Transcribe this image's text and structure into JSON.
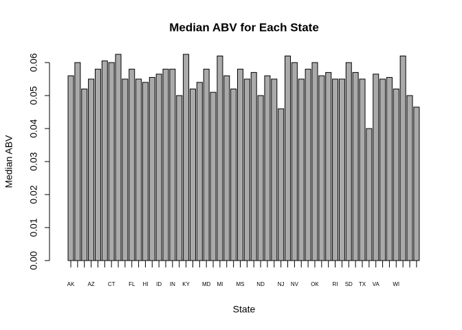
{
  "chart_data": {
    "type": "bar",
    "title": "Median ABV for Each State",
    "x_label": "State",
    "y_label": "Median ABV",
    "categories": [
      "AK",
      null,
      null,
      "AZ",
      null,
      null,
      "CT",
      null,
      null,
      "FL",
      null,
      "HI",
      null,
      "ID",
      null,
      "IN",
      null,
      "KY",
      null,
      null,
      "MD",
      null,
      "MI",
      null,
      null,
      "MS",
      null,
      null,
      "ND",
      null,
      null,
      "NJ",
      null,
      "NV",
      null,
      null,
      "OK",
      null,
      null,
      "RI",
      null,
      "SD",
      null,
      "TX",
      null,
      "VA",
      null,
      null,
      "WI",
      null,
      null,
      null
    ],
    "values": [
      0.056,
      0.06,
      0.052,
      0.055,
      0.058,
      0.0605,
      0.06,
      0.0625,
      0.055,
      0.058,
      0.055,
      0.054,
      0.0555,
      0.0565,
      0.058,
      0.058,
      0.05,
      0.0625,
      0.052,
      0.054,
      0.058,
      0.051,
      0.062,
      0.056,
      0.052,
      0.058,
      0.055,
      0.057,
      0.05,
      0.056,
      0.055,
      0.046,
      0.062,
      0.06,
      0.055,
      0.058,
      0.06,
      0.056,
      0.057,
      0.055,
      0.055,
      0.06,
      0.057,
      0.055,
      0.04,
      0.0565,
      0.055,
      0.0555,
      0.052,
      0.062,
      0.05,
      0.0465
    ],
    "color": "#aaaaaa",
    "ylim": [
      0,
      0.06
    ],
    "yticks": [
      {
        "value": 0,
        "label": "0.00"
      },
      {
        "value": 0.01,
        "label": "0.01"
      },
      {
        "value": 0.02,
        "label": "0.02"
      },
      {
        "value": 0.03,
        "label": "0.03"
      },
      {
        "value": 0.04,
        "label": "0.04"
      },
      {
        "value": 0.05,
        "label": "0.05"
      },
      {
        "value": 0.06,
        "label": "0.06"
      }
    ],
    "grid": false
  }
}
